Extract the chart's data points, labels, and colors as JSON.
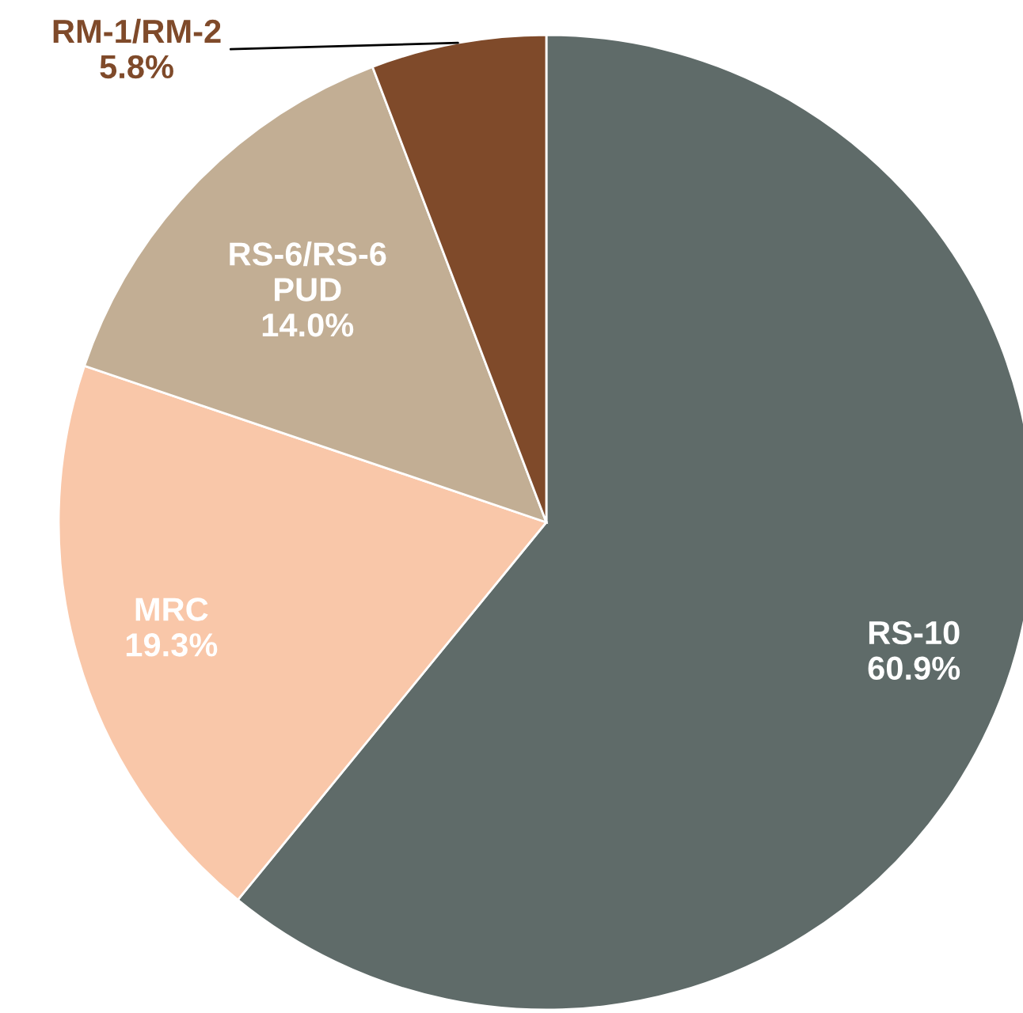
{
  "chart_data": {
    "type": "pie",
    "categories": [
      "RS-10",
      "MRC",
      "RS-6/RS-6 PUD",
      "RM-1/RM-2"
    ],
    "values": [
      60.9,
      19.3,
      14.0,
      5.8
    ],
    "value_labels": [
      "60.9%",
      "19.3%",
      "14.0%",
      "5.8%"
    ],
    "colors": [
      "#5f6b69",
      "#f9c7a9",
      "#c2ae94",
      "#7f4a2a"
    ],
    "legend": false
  }
}
